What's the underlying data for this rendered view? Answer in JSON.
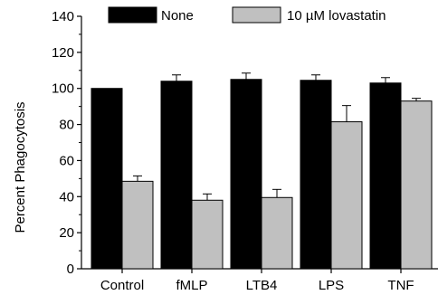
{
  "chart_data": {
    "type": "bar",
    "categories": [
      "Control",
      "fMLP",
      "LTB4",
      "LPS",
      "TNF"
    ],
    "series": [
      {
        "name": "None",
        "color": "#000000",
        "values": [
          100,
          104,
          105,
          104.5,
          103
        ],
        "errors": [
          0,
          3.5,
          3.5,
          3,
          3
        ]
      },
      {
        "name": "10 µM lovastatin",
        "color": "#c0c0c0",
        "values": [
          48.5,
          38,
          39.5,
          81.5,
          93
        ],
        "errors": [
          3,
          3.5,
          4.5,
          9,
          1.5
        ]
      }
    ],
    "xlabel": "",
    "ylabel": "Percent Phagocytosis",
    "ylim": [
      0,
      140
    ],
    "yticks": [
      0,
      20,
      40,
      60,
      80,
      100,
      120,
      140
    ],
    "grid": false,
    "legend_position": "top"
  }
}
